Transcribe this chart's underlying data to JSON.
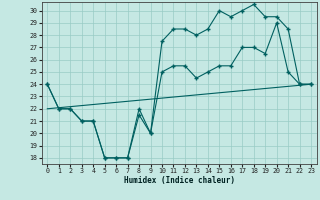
{
  "xlabel": "Humidex (Indice chaleur)",
  "background_color": "#c5e8e3",
  "grid_color": "#99ccc5",
  "line_color": "#006060",
  "xlim": [
    -0.5,
    23.5
  ],
  "ylim": [
    17.5,
    30.7
  ],
  "yticks": [
    18,
    19,
    20,
    21,
    22,
    23,
    24,
    25,
    26,
    27,
    28,
    29,
    30
  ],
  "xticks": [
    0,
    1,
    2,
    3,
    4,
    5,
    6,
    7,
    8,
    9,
    10,
    11,
    12,
    13,
    14,
    15,
    16,
    17,
    18,
    19,
    20,
    21,
    22,
    23
  ],
  "line1_x": [
    0,
    1,
    2,
    3,
    4,
    5,
    6,
    7,
    8,
    9,
    10,
    11,
    12,
    13,
    14,
    15,
    16,
    17,
    18,
    19,
    20,
    21,
    22,
    23
  ],
  "line1_y": [
    24,
    22,
    22,
    21,
    21,
    18,
    18,
    18,
    21.5,
    20,
    27.5,
    28.5,
    28.5,
    28,
    28.5,
    30,
    29.5,
    30,
    30.5,
    29.5,
    29.5,
    28.5,
    24,
    24
  ],
  "line2_x": [
    0,
    1,
    2,
    3,
    4,
    5,
    6,
    7,
    8,
    9,
    10,
    11,
    12,
    13,
    14,
    15,
    16,
    17,
    18,
    19,
    20,
    21,
    22,
    23
  ],
  "line2_y": [
    24,
    22,
    22,
    21,
    21,
    18,
    18,
    18,
    22,
    20,
    25,
    25.5,
    25.5,
    24.5,
    25,
    25.5,
    25.5,
    27,
    27,
    26.5,
    29,
    25,
    24,
    24
  ],
  "line3_x": [
    0,
    23
  ],
  "line3_y": [
    22,
    24
  ]
}
